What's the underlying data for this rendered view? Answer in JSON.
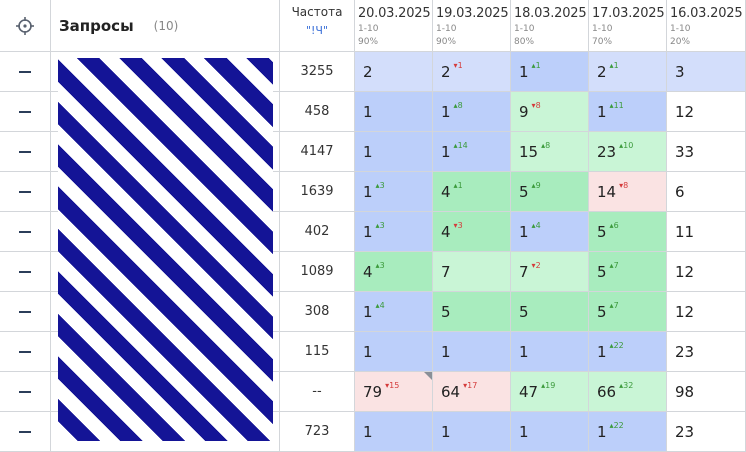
{
  "header": {
    "title": "Запросы",
    "count": "(10)",
    "freq_label": "Частота",
    "freq_sub": "\"!Ч\"",
    "dates": [
      {
        "date": "20.03.2025",
        "range": "1-10",
        "pct": "90%"
      },
      {
        "date": "19.03.2025",
        "range": "1-10",
        "pct": "90%"
      },
      {
        "date": "18.03.2025",
        "range": "1-10",
        "pct": "80%"
      },
      {
        "date": "17.03.2025",
        "range": "1-10",
        "pct": "70%"
      },
      {
        "date": "16.03.2025",
        "range": "1-10",
        "pct": "20%"
      }
    ]
  },
  "icons": {
    "target": "crosshair-target-icon",
    "row_toggle": "dash-icon"
  },
  "colors": {
    "top3": "#ccdafa",
    "top10": "#bccffa",
    "improved": "#a8ecbe",
    "improved_light": "#c9f5d6",
    "worse": "#fae3e3",
    "white": "#ffffff",
    "redacted_stripe": "#141496"
  },
  "rows": [
    {
      "freq": "3255",
      "positions": [
        {
          "v": "2",
          "d": "",
          "dir": "",
          "bg": "#d3defb"
        },
        {
          "v": "2",
          "d": "1",
          "dir": "down",
          "bg": "#d3defb"
        },
        {
          "v": "1",
          "d": "1",
          "dir": "up",
          "bg": "#bccffa"
        },
        {
          "v": "2",
          "d": "1",
          "dir": "up",
          "bg": "#d3defb"
        },
        {
          "v": "3",
          "d": "",
          "dir": "",
          "bg": "#d3defb"
        }
      ]
    },
    {
      "freq": "458",
      "positions": [
        {
          "v": "1",
          "d": "",
          "dir": "",
          "bg": "#bccffa"
        },
        {
          "v": "1",
          "d": "8",
          "dir": "up",
          "bg": "#bccffa"
        },
        {
          "v": "9",
          "d": "8",
          "dir": "down",
          "bg": "#c9f5d6"
        },
        {
          "v": "1",
          "d": "11",
          "dir": "up",
          "bg": "#bccffa"
        },
        {
          "v": "12",
          "d": "",
          "dir": "",
          "bg": "#ffffff"
        }
      ]
    },
    {
      "freq": "4147",
      "positions": [
        {
          "v": "1",
          "d": "",
          "dir": "",
          "bg": "#bccffa"
        },
        {
          "v": "1",
          "d": "14",
          "dir": "up",
          "bg": "#bccffa"
        },
        {
          "v": "15",
          "d": "8",
          "dir": "up",
          "bg": "#c9f5d6"
        },
        {
          "v": "23",
          "d": "10",
          "dir": "up",
          "bg": "#c9f5d6"
        },
        {
          "v": "33",
          "d": "",
          "dir": "",
          "bg": "#ffffff"
        }
      ]
    },
    {
      "freq": "1639",
      "positions": [
        {
          "v": "1",
          "d": "3",
          "dir": "up",
          "bg": "#bccffa"
        },
        {
          "v": "4",
          "d": "1",
          "dir": "up",
          "bg": "#a8ecbe"
        },
        {
          "v": "5",
          "d": "9",
          "dir": "up",
          "bg": "#a8ecbe"
        },
        {
          "v": "14",
          "d": "8",
          "dir": "down",
          "bg": "#fae3e3"
        },
        {
          "v": "6",
          "d": "",
          "dir": "",
          "bg": "#ffffff"
        }
      ]
    },
    {
      "freq": "402",
      "positions": [
        {
          "v": "1",
          "d": "3",
          "dir": "up",
          "bg": "#bccffa"
        },
        {
          "v": "4",
          "d": "3",
          "dir": "down",
          "bg": "#a8ecbe"
        },
        {
          "v": "1",
          "d": "4",
          "dir": "up",
          "bg": "#bccffa"
        },
        {
          "v": "5",
          "d": "6",
          "dir": "up",
          "bg": "#a8ecbe"
        },
        {
          "v": "11",
          "d": "",
          "dir": "",
          "bg": "#ffffff"
        }
      ]
    },
    {
      "freq": "1089",
      "positions": [
        {
          "v": "4",
          "d": "3",
          "dir": "up",
          "bg": "#a8ecbe"
        },
        {
          "v": "7",
          "d": "",
          "dir": "",
          "bg": "#c9f5d6"
        },
        {
          "v": "7",
          "d": "2",
          "dir": "down",
          "bg": "#c9f5d6"
        },
        {
          "v": "5",
          "d": "7",
          "dir": "up",
          "bg": "#a8ecbe"
        },
        {
          "v": "12",
          "d": "",
          "dir": "",
          "bg": "#ffffff"
        }
      ]
    },
    {
      "freq": "308",
      "positions": [
        {
          "v": "1",
          "d": "4",
          "dir": "up",
          "bg": "#bccffa"
        },
        {
          "v": "5",
          "d": "",
          "dir": "",
          "bg": "#a8ecbe"
        },
        {
          "v": "5",
          "d": "",
          "dir": "",
          "bg": "#a8ecbe"
        },
        {
          "v": "5",
          "d": "7",
          "dir": "up",
          "bg": "#a8ecbe"
        },
        {
          "v": "12",
          "d": "",
          "dir": "",
          "bg": "#ffffff"
        }
      ]
    },
    {
      "freq": "115",
      "positions": [
        {
          "v": "1",
          "d": "",
          "dir": "",
          "bg": "#bccffa"
        },
        {
          "v": "1",
          "d": "",
          "dir": "",
          "bg": "#bccffa"
        },
        {
          "v": "1",
          "d": "",
          "dir": "",
          "bg": "#bccffa"
        },
        {
          "v": "1",
          "d": "22",
          "dir": "up",
          "bg": "#bccffa"
        },
        {
          "v": "23",
          "d": "",
          "dir": "",
          "bg": "#ffffff"
        }
      ]
    },
    {
      "freq": "--",
      "positions": [
        {
          "v": "79",
          "d": "15",
          "dir": "down",
          "bg": "#fae3e3",
          "corner": true
        },
        {
          "v": "64",
          "d": "17",
          "dir": "down",
          "bg": "#fae3e3"
        },
        {
          "v": "47",
          "d": "19",
          "dir": "up",
          "bg": "#c9f5d6"
        },
        {
          "v": "66",
          "d": "32",
          "dir": "up",
          "bg": "#c9f5d6"
        },
        {
          "v": "98",
          "d": "",
          "dir": "",
          "bg": "#ffffff"
        }
      ]
    },
    {
      "freq": "723",
      "positions": [
        {
          "v": "1",
          "d": "",
          "dir": "",
          "bg": "#bccffa"
        },
        {
          "v": "1",
          "d": "",
          "dir": "",
          "bg": "#bccffa"
        },
        {
          "v": "1",
          "d": "",
          "dir": "",
          "bg": "#bccffa"
        },
        {
          "v": "1",
          "d": "22",
          "dir": "up",
          "bg": "#bccffa"
        },
        {
          "v": "23",
          "d": "",
          "dir": "",
          "bg": "#ffffff"
        }
      ]
    }
  ]
}
